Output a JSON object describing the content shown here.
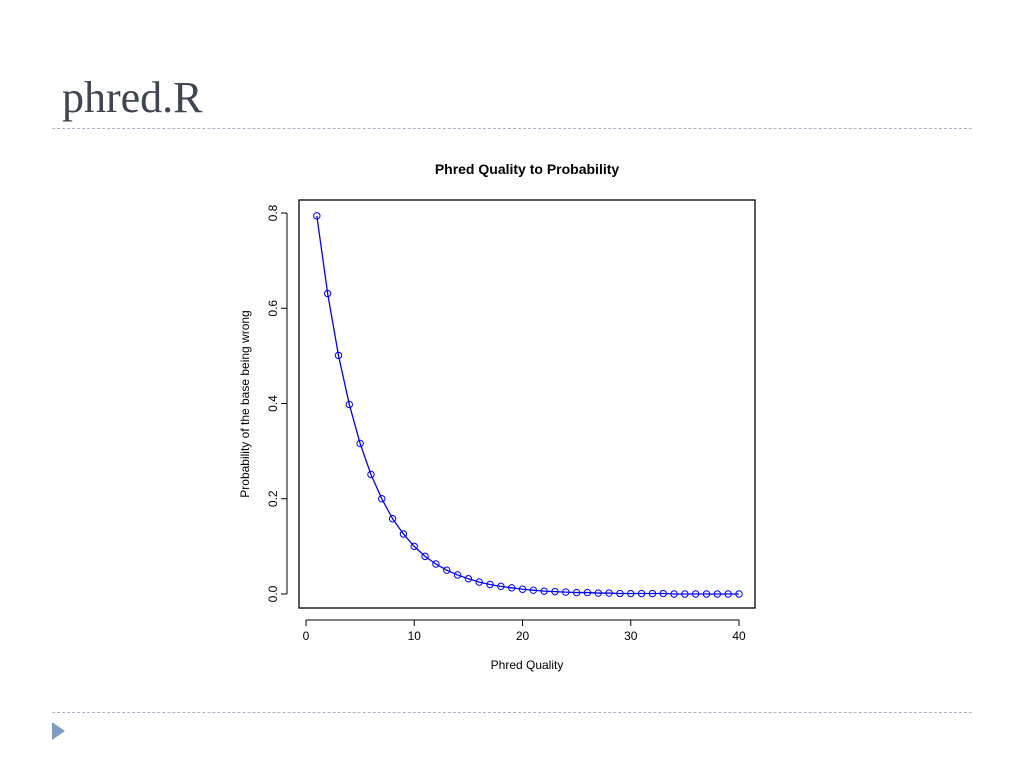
{
  "slide": {
    "title": "phred.R"
  },
  "colors": {
    "title": "#404552",
    "rule": "#a9b4c2",
    "bullet": "#7d9cc0",
    "series": "#0000ff"
  },
  "icons": {
    "bullet": "triangle-right-icon"
  },
  "chart_data": {
    "type": "line",
    "title": "Phred Quality to Probability",
    "xlabel": "Phred Quality",
    "ylabel": "Probability of the base being wrong",
    "xlim": [
      0,
      40
    ],
    "ylim": [
      0,
      0.8
    ],
    "xticks": [
      "0",
      "10",
      "20",
      "30",
      "40"
    ],
    "yticks": [
      "0.0",
      "0.2",
      "0.4",
      "0.6",
      "0.8"
    ],
    "grid": false,
    "legend": "none",
    "markers": "open-circle",
    "series": [
      {
        "x": [
          1,
          2,
          3,
          4,
          5,
          6,
          7,
          8,
          9,
          10,
          11,
          12,
          13,
          14,
          15,
          16,
          17,
          18,
          19,
          20,
          21,
          22,
          23,
          24,
          25,
          26,
          27,
          28,
          29,
          30,
          31,
          32,
          33,
          34,
          35,
          36,
          37,
          38,
          39,
          40
        ],
        "y": [
          0.794,
          0.631,
          0.501,
          0.398,
          0.316,
          0.251,
          0.2,
          0.158,
          0.126,
          0.1,
          0.079,
          0.063,
          0.05,
          0.04,
          0.032,
          0.025,
          0.02,
          0.016,
          0.013,
          0.01,
          0.008,
          0.006,
          0.005,
          0.004,
          0.003,
          0.003,
          0.002,
          0.002,
          0.001,
          0.001,
          0.001,
          0.001,
          0.001,
          0.0,
          0.0,
          0.0,
          0.0,
          0.0,
          0.0,
          0.0
        ]
      }
    ]
  }
}
